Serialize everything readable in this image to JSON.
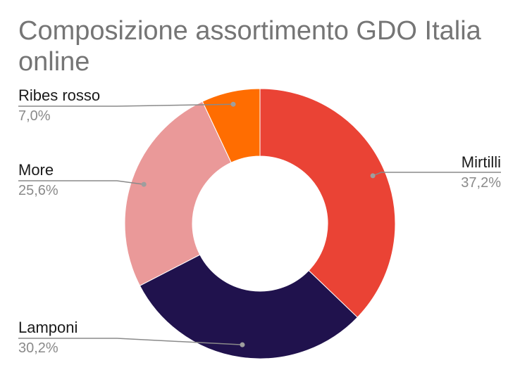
{
  "chart_data": {
    "type": "pie",
    "title": "Composizione assortimento GDO Italia online",
    "donut": true,
    "start_angle_deg": 0,
    "direction": "clockwise",
    "slices": [
      {
        "label": "Mirtilli",
        "value": 37.2,
        "value_label": "37,2%",
        "color": "#ea4335"
      },
      {
        "label": "Lamponi",
        "value": 30.2,
        "value_label": "30,2%",
        "color": "#20124d"
      },
      {
        "label": "More",
        "value": 25.6,
        "value_label": "25,6%",
        "color": "#ea9999"
      },
      {
        "label": "Ribes rosso",
        "value": 7.0,
        "value_label": "7,0%",
        "color": "#ff6d01"
      }
    ],
    "legend": "none"
  }
}
